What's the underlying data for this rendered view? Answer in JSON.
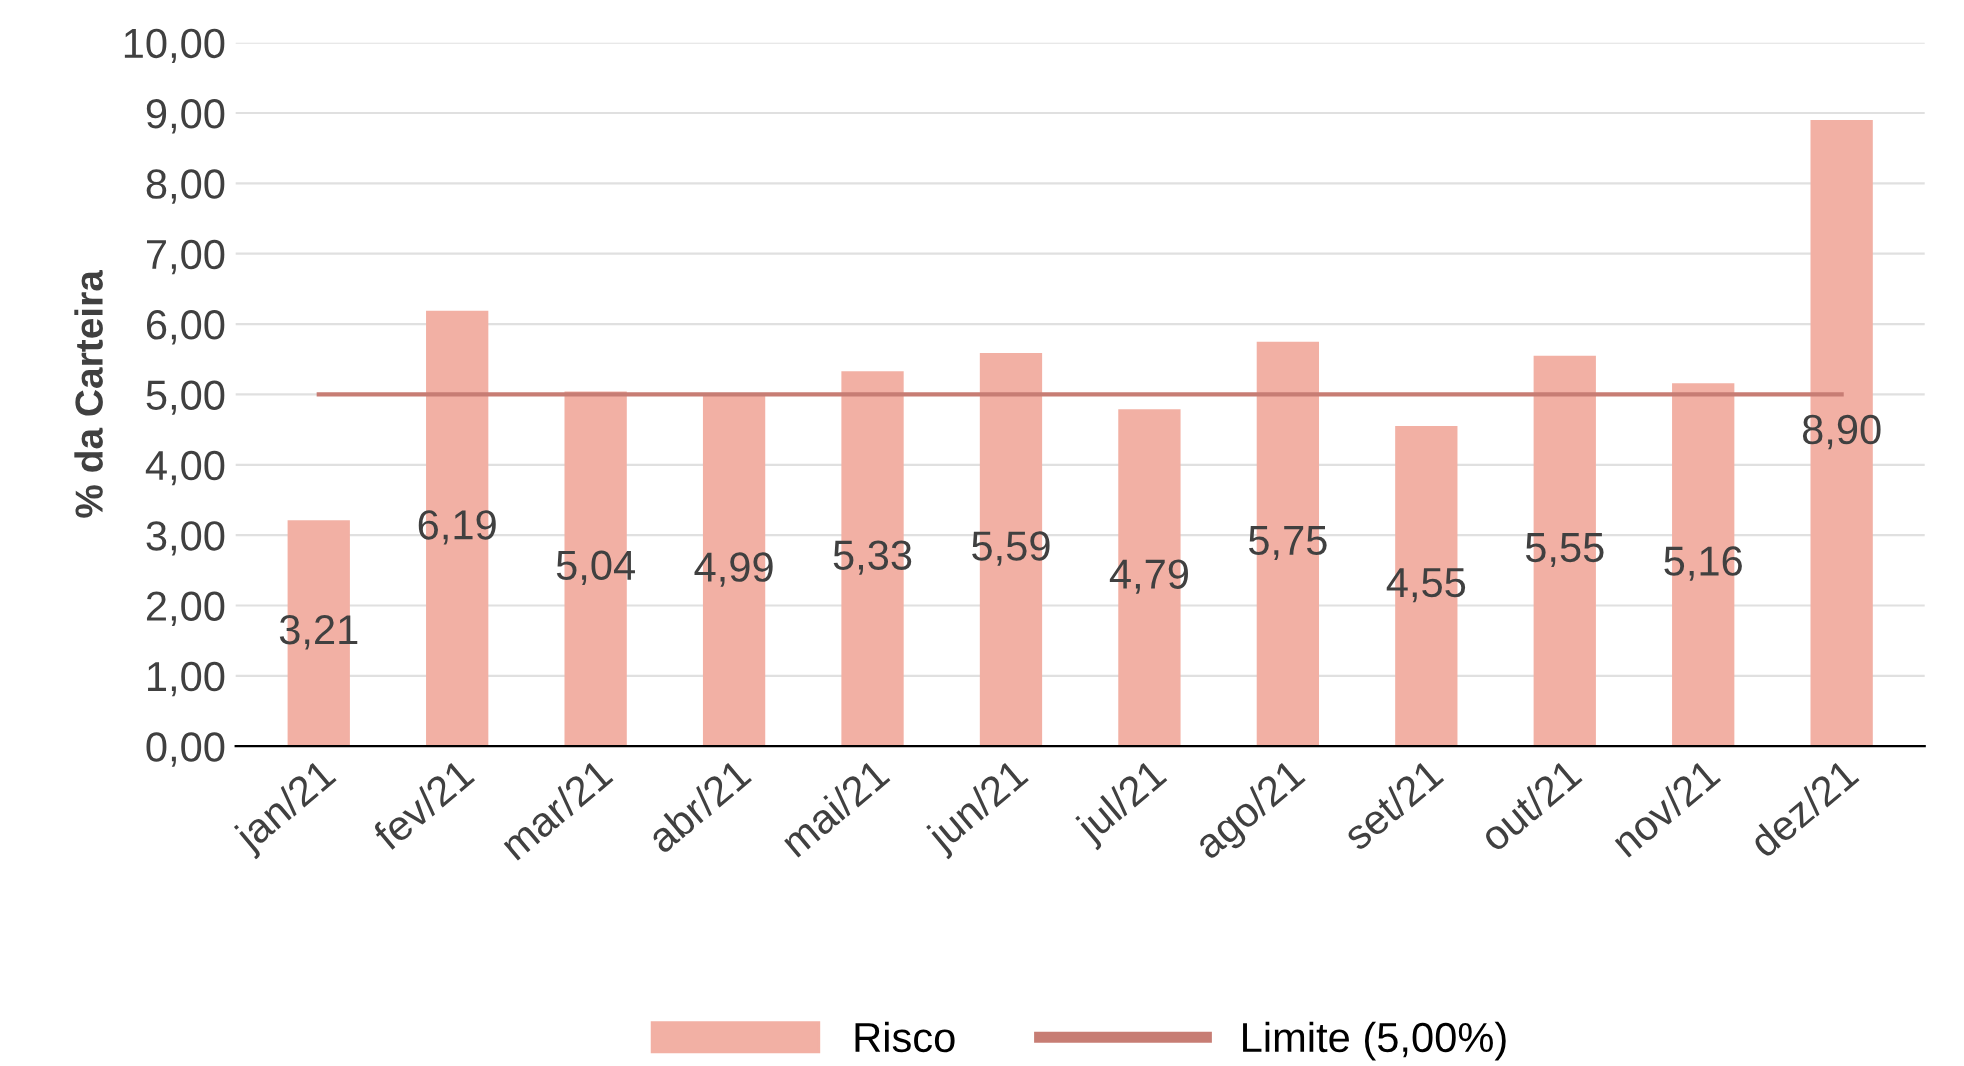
{
  "chart_data": {
    "type": "bar",
    "ylabel": "% da Carteira",
    "categories": [
      "jan/21",
      "fev/21",
      "mar/21",
      "abr/21",
      "mai/21",
      "jun/21",
      "jul/21",
      "ago/21",
      "set/21",
      "out/21",
      "nov/21",
      "dez/21"
    ],
    "series": [
      {
        "name": "Risco",
        "color": "#f2b0a4",
        "values": [
          3.21,
          6.19,
          5.04,
          4.99,
          5.33,
          5.59,
          4.79,
          5.75,
          4.55,
          5.55,
          5.16,
          8.9
        ],
        "value_labels": [
          "3,21",
          "6,19",
          "5,04",
          "4,99",
          "5,33",
          "5,59",
          "4,79",
          "5,75",
          "4,55",
          "5,55",
          "5,16",
          "8,90"
        ]
      },
      {
        "name": "Limite (5,00%)",
        "type": "line",
        "color": "#c77d74",
        "values": [
          5.0,
          5.0,
          5.0,
          5.0,
          5.0,
          5.0,
          5.0,
          5.0,
          5.0,
          5.0,
          5.0,
          5.0
        ]
      }
    ],
    "ylim": [
      0,
      10
    ],
    "yticks": [
      {
        "value": 0,
        "label": "0,00"
      },
      {
        "value": 1,
        "label": "1,00"
      },
      {
        "value": 2,
        "label": "2,00"
      },
      {
        "value": 3,
        "label": "3,00"
      },
      {
        "value": 4,
        "label": "4,00"
      },
      {
        "value": 5,
        "label": "5,00"
      },
      {
        "value": 6,
        "label": "6,00"
      },
      {
        "value": 7,
        "label": "7,00"
      },
      {
        "value": 8,
        "label": "8,00"
      },
      {
        "value": 9,
        "label": "9,00"
      },
      {
        "value": 10,
        "label": "10,00"
      }
    ],
    "grid": "y",
    "legend": "bottom",
    "marker": "none",
    "line_style": "solid"
  }
}
